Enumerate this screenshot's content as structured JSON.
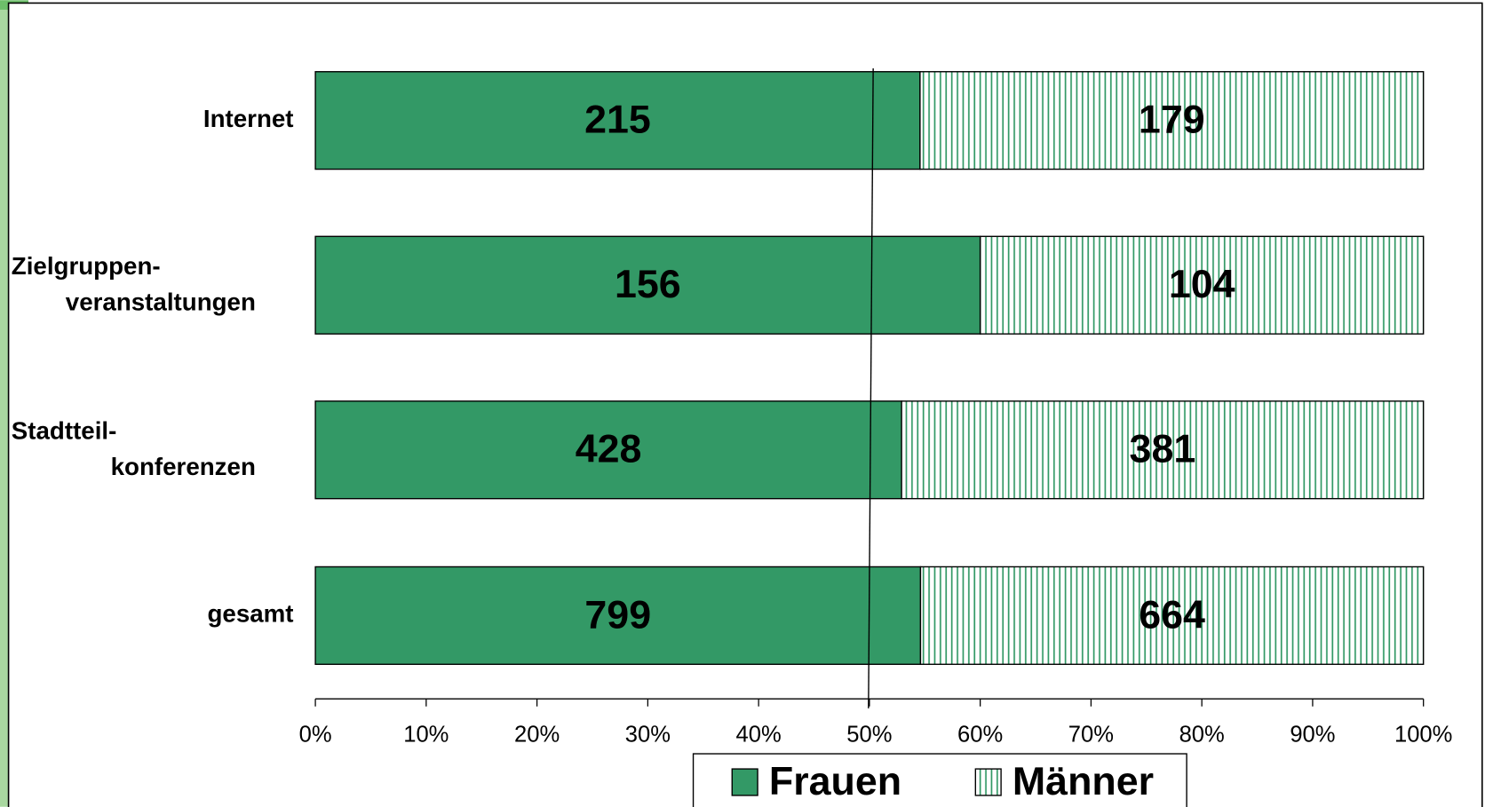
{
  "chart_data": {
    "type": "bar",
    "orientation": "horizontal",
    "stack": "percent",
    "categories": [
      "Internet",
      "Zielgruppen-\nveranstaltungen",
      "Stadtteil-\nkonferenzen",
      "gesamt"
    ],
    "series": [
      {
        "name": "Frauen",
        "color": "#339966",
        "pattern": "solid",
        "values": [
          215,
          156,
          428,
          799
        ]
      },
      {
        "name": "Männer",
        "color": "#339966",
        "pattern": "vertical-lines",
        "values": [
          179,
          104,
          381,
          664
        ]
      }
    ],
    "xlim": [
      0,
      100
    ],
    "xticks": [
      {
        "value": 0,
        "label": "0%"
      },
      {
        "value": 10,
        "label": "10%"
      },
      {
        "value": 20,
        "label": "20%"
      },
      {
        "value": 30,
        "label": "30%"
      },
      {
        "value": 40,
        "label": "40%"
      },
      {
        "value": 50,
        "label": "50%"
      },
      {
        "value": 60,
        "label": "60%"
      },
      {
        "value": 70,
        "label": "70%"
      },
      {
        "value": 80,
        "label": "80%"
      },
      {
        "value": 90,
        "label": "90%"
      },
      {
        "value": 100,
        "label": "100%"
      }
    ],
    "reference_line": 50,
    "legend": "bottom"
  }
}
